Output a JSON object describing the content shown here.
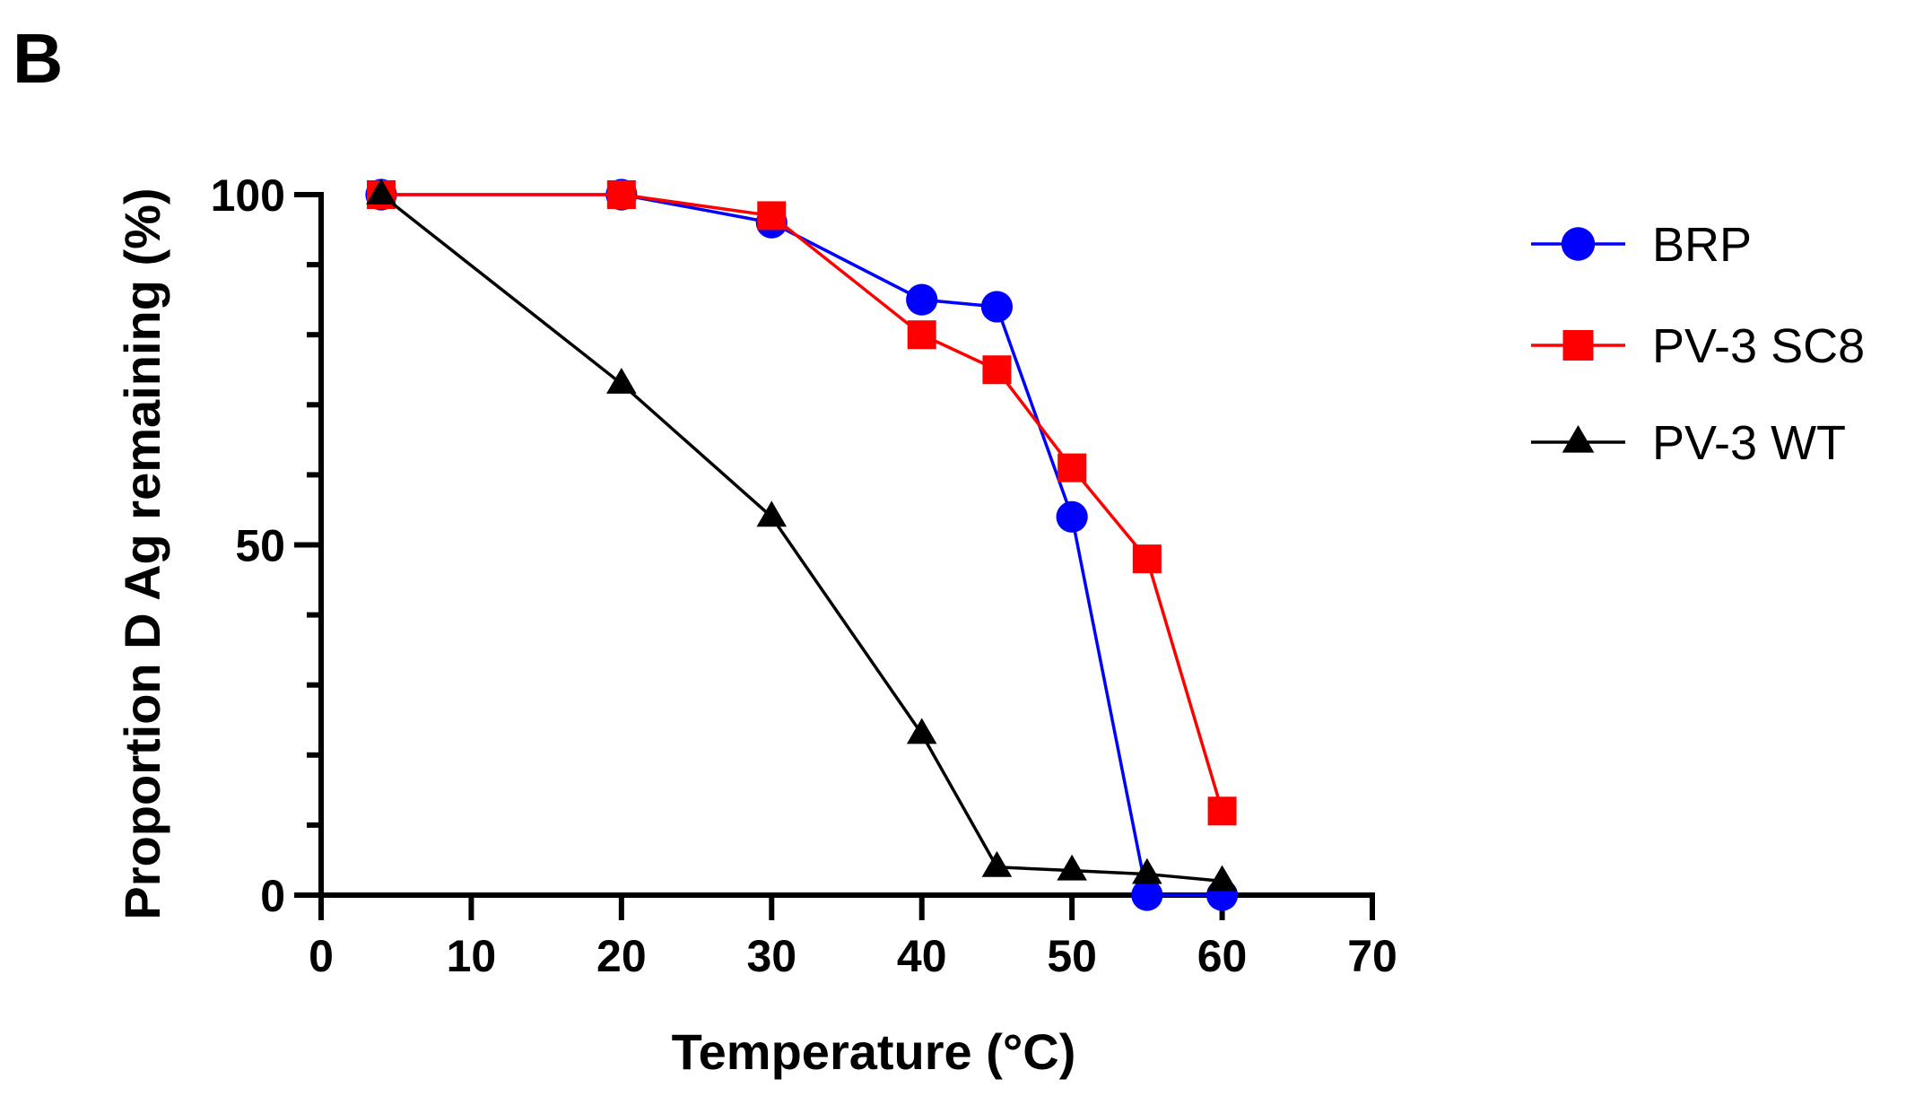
{
  "panel_label": "B",
  "chart_data": {
    "type": "line",
    "title": "",
    "xlabel": "Temperature (°C)",
    "ylabel": "Proportion D Ag remaining (%)",
    "xlim": [
      0,
      70
    ],
    "ylim": [
      0,
      100
    ],
    "xticks": [
      0,
      10,
      20,
      30,
      40,
      50,
      60,
      70
    ],
    "xtick_labels": [
      "0",
      "10",
      "20",
      "30",
      "40",
      "50",
      "60",
      "70"
    ],
    "yticks": [
      0,
      50,
      100
    ],
    "ytick_labels": [
      "0",
      "50",
      "100"
    ],
    "y_minor_step": 10,
    "grid": false,
    "legend_position": "right",
    "series": [
      {
        "name": "BRP",
        "color": "#0000FF",
        "marker": "circle",
        "x": [
          4,
          20,
          30,
          40,
          45,
          50,
          55,
          60
        ],
        "y": [
          100,
          100,
          96,
          85,
          84,
          54,
          0,
          0
        ]
      },
      {
        "name": "PV-3 SC8",
        "color": "#FF0000",
        "marker": "square",
        "x": [
          4,
          20,
          30,
          40,
          45,
          50,
          55,
          60
        ],
        "y": [
          100,
          100,
          97,
          80,
          75,
          61,
          48,
          12
        ]
      },
      {
        "name": "PV-3 WT",
        "color": "#000000",
        "marker": "triangle",
        "x": [
          4,
          20,
          30,
          40,
          45,
          50,
          55,
          60
        ],
        "y": [
          100,
          73,
          54,
          23,
          4,
          3.5,
          3,
          2
        ]
      }
    ]
  }
}
